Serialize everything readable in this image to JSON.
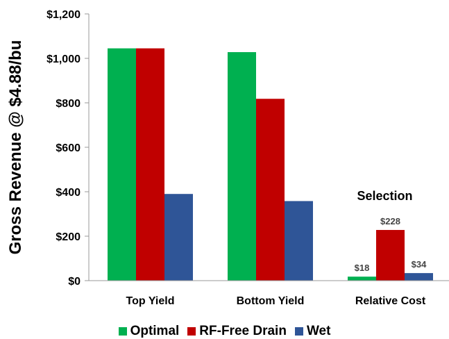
{
  "chart_data": {
    "type": "bar",
    "categories": [
      "Top Yield",
      "Bottom Yield",
      "Relative Cost"
    ],
    "series": [
      {
        "name": "Optimal",
        "color": "#00b050",
        "values": [
          1045,
          1028,
          18
        ]
      },
      {
        "name": "RF-Free Drain",
        "color": "#c00000",
        "values": [
          1045,
          818,
          228
        ]
      },
      {
        "name": "Wet",
        "color": "#2f5597",
        "values": [
          390,
          358,
          34
        ]
      }
    ],
    "data_labels": [
      {
        "category": 2,
        "series": 0,
        "text": "$18"
      },
      {
        "category": 2,
        "series": 1,
        "text": "$228"
      },
      {
        "category": 2,
        "series": 2,
        "text": "$34"
      }
    ],
    "annotation": {
      "text": "Selection",
      "category": 2
    },
    "ylabel": "Gross Revenue @ $4.88/bu",
    "xlabel": "",
    "ylim": [
      0,
      1200
    ],
    "yticks": [
      0,
      200,
      400,
      600,
      800,
      1000,
      1200
    ],
    "ytick_labels": [
      "$0",
      "$200",
      "$400",
      "$600",
      "$800",
      "$1,000",
      "$1,200"
    ],
    "legend_position": "bottom",
    "grid": false
  }
}
